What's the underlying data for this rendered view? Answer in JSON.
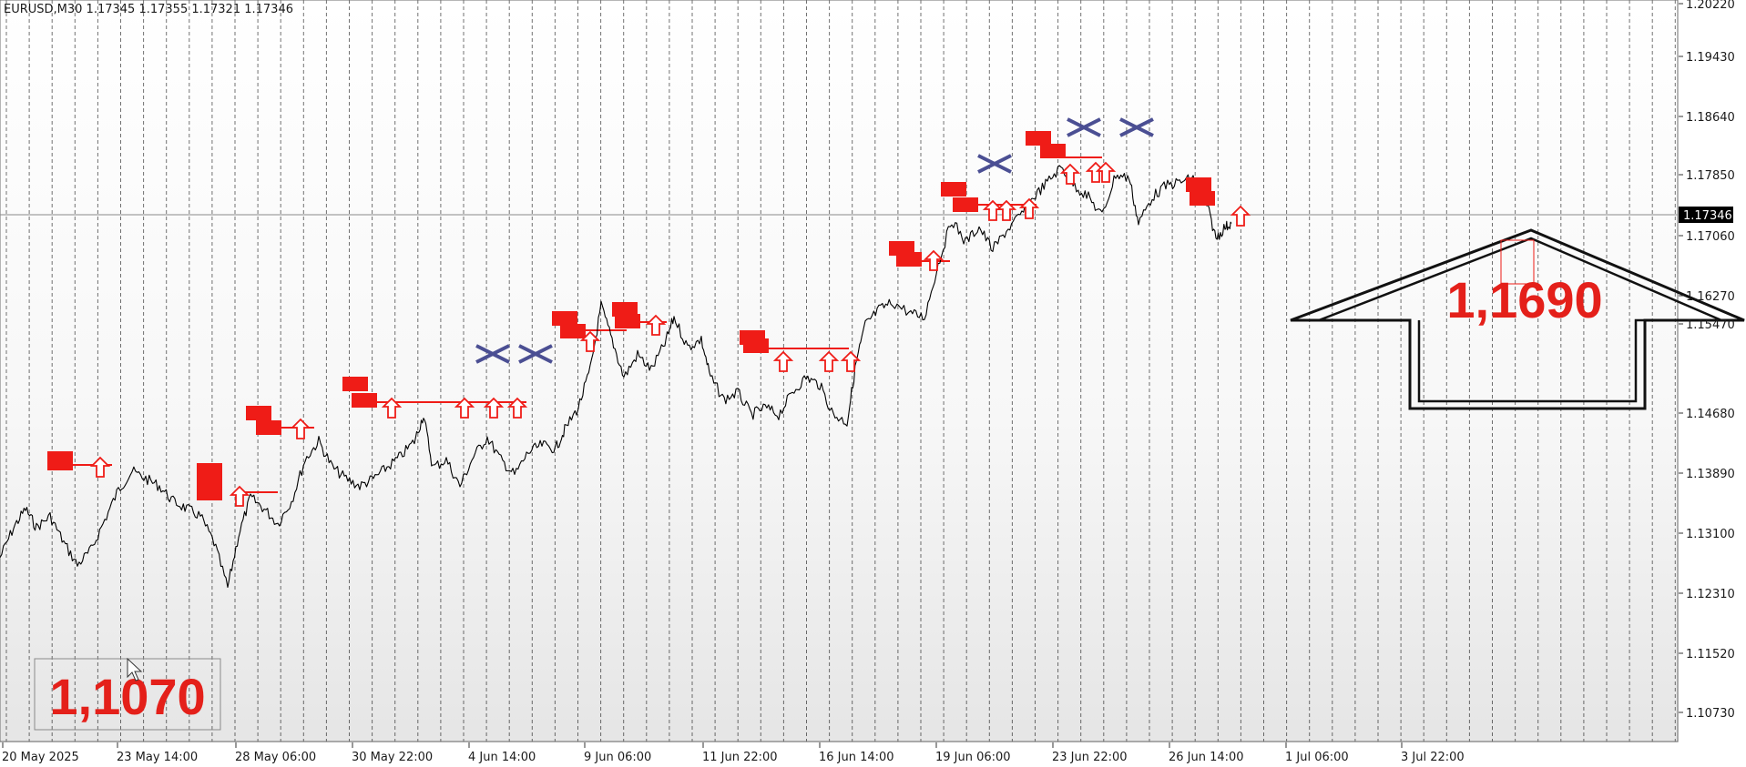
{
  "chart_data": {
    "type": "line",
    "header": "EURUSD,M30  1.17345 1.17355 1.17321 1.17346",
    "symbol": "EURUSD",
    "timeframe": "M30",
    "ohlc": {
      "open": "1.17345",
      "high": "1.17355",
      "low": "1.17321",
      "close": "1.17346"
    },
    "price_labels": [
      "1.20220",
      "1.19430",
      "1.18640",
      "1.17850",
      "1.17060",
      "1.16270",
      "1.15470",
      "1.14680",
      "1.13890",
      "1.13100",
      "1.12310",
      "1.11520",
      "1.10730"
    ],
    "current_price": "1.17346",
    "time_labels": [
      "20 May 2025",
      "23 May 14:00",
      "28 May 06:00",
      "30 May 22:00",
      "4 Jun 14:00",
      "9 Jun 06:00",
      "11 Jun 22:00",
      "16 Jun 14:00",
      "19 Jun 06:00",
      "23 Jun 22:00",
      "26 Jun 14:00",
      "1 Jul 06:00",
      "3 Jul 22:00"
    ],
    "ylim": [
      1.1045,
      1.203
    ],
    "grid": "vertical dashed",
    "series": [
      {
        "values": [
          [
            0,
            1.129
          ],
          [
            15,
            1.133
          ],
          [
            28,
            1.1355
          ],
          [
            40,
            1.133
          ],
          [
            55,
            1.1345
          ],
          [
            70,
            1.131
          ],
          [
            85,
            1.128
          ],
          [
            100,
            1.13
          ],
          [
            115,
            1.134
          ],
          [
            130,
            1.138
          ],
          [
            145,
            1.1405
          ],
          [
            160,
            1.1395
          ],
          [
            175,
            1.1385
          ],
          [
            190,
            1.1365
          ],
          [
            205,
            1.1355
          ],
          [
            220,
            1.1345
          ],
          [
            235,
            1.131
          ],
          [
            250,
            1.125
          ],
          [
            262,
            1.132
          ],
          [
            275,
            1.137
          ],
          [
            290,
            1.1355
          ],
          [
            305,
            1.1335
          ],
          [
            320,
            1.1365
          ],
          [
            335,
            1.142
          ],
          [
            350,
            1.1445
          ],
          [
            365,
            1.141
          ],
          [
            380,
            1.1395
          ],
          [
            395,
            1.1385
          ],
          [
            410,
            1.1395
          ],
          [
            425,
            1.141
          ],
          [
            440,
            1.1425
          ],
          [
            455,
            1.1445
          ],
          [
            465,
            1.148
          ],
          [
            475,
            1.141
          ],
          [
            490,
            1.142
          ],
          [
            505,
            1.1385
          ],
          [
            520,
            1.1425
          ],
          [
            535,
            1.145
          ],
          [
            550,
            1.142
          ],
          [
            565,
            1.14
          ],
          [
            580,
            1.143
          ],
          [
            595,
            1.144
          ],
          [
            610,
            1.1435
          ],
          [
            620,
            1.146
          ],
          [
            635,
            1.149
          ],
          [
            648,
            1.154
          ],
          [
            660,
            1.1625
          ],
          [
            672,
            1.158
          ],
          [
            685,
            1.153
          ],
          [
            700,
            1.156
          ],
          [
            715,
            1.154
          ],
          [
            730,
            1.1575
          ],
          [
            740,
            1.161
          ],
          [
            755,
            1.157
          ],
          [
            770,
            1.158
          ],
          [
            780,
            1.153
          ],
          [
            795,
            1.15
          ],
          [
            810,
            1.151
          ],
          [
            825,
            1.148
          ],
          [
            840,
            1.149
          ],
          [
            855,
            1.148
          ],
          [
            870,
            1.151
          ],
          [
            885,
            1.153
          ],
          [
            900,
            1.152
          ],
          [
            915,
            1.148
          ],
          [
            930,
            1.147
          ],
          [
            940,
            1.155
          ],
          [
            950,
            1.16
          ],
          [
            965,
            1.162
          ],
          [
            980,
            1.163
          ],
          [
            1000,
            1.1615
          ],
          [
            1015,
            1.161
          ],
          [
            1030,
            1.168
          ],
          [
            1045,
            1.174
          ],
          [
            1060,
            1.171
          ],
          [
            1075,
            1.173
          ],
          [
            1090,
            1.17
          ],
          [
            1105,
            1.1725
          ],
          [
            1120,
            1.1745
          ],
          [
            1135,
            1.177
          ],
          [
            1150,
            1.179
          ],
          [
            1165,
            1.181
          ],
          [
            1180,
            1.1785
          ],
          [
            1195,
            1.177
          ],
          [
            1210,
            1.1745
          ],
          [
            1225,
            1.18
          ],
          [
            1240,
            1.1795
          ],
          [
            1250,
            1.1735
          ],
          [
            1265,
            1.177
          ],
          [
            1280,
            1.1785
          ],
          [
            1295,
            1.179
          ],
          [
            1310,
            1.1795
          ],
          [
            1325,
            1.176
          ],
          [
            1335,
            1.1715
          ],
          [
            1345,
            1.173
          ],
          [
            1352,
            1.1735
          ]
        ]
      }
    ],
    "signals": {
      "red_boxes": [
        [
          66,
          509
        ],
        [
          66,
          504
        ],
        [
          230,
          517
        ],
        [
          230,
          529
        ],
        [
          230,
          542
        ],
        [
          284,
          454
        ],
        [
          295,
          470
        ],
        [
          390,
          422
        ],
        [
          400,
          440
        ],
        [
          620,
          350
        ],
        [
          629,
          364
        ],
        [
          686,
          340
        ],
        [
          689,
          353
        ],
        [
          826,
          371
        ],
        [
          830,
          380
        ],
        [
          1047,
          208
        ],
        [
          1060,
          225
        ],
        [
          990,
          273
        ],
        [
          998,
          285
        ],
        [
          1140,
          152
        ],
        [
          1156,
          166
        ],
        [
          1316,
          203
        ],
        [
          1320,
          218
        ]
      ],
      "up_arrows": [
        [
          110,
          514
        ],
        [
          263,
          546
        ],
        [
          330,
          472
        ],
        [
          430,
          449
        ],
        [
          510,
          449
        ],
        [
          542,
          449
        ],
        [
          568,
          449
        ],
        [
          648,
          376
        ],
        [
          720,
          358
        ],
        [
          860,
          398
        ],
        [
          910,
          398
        ],
        [
          934,
          398
        ],
        [
          1025,
          287
        ],
        [
          1090,
          232
        ],
        [
          1105,
          232
        ],
        [
          1130,
          230
        ],
        [
          1175,
          192
        ],
        [
          1203,
          190
        ],
        [
          1214,
          190
        ],
        [
          1362,
          238
        ]
      ],
      "x_marks": [
        [
          541,
          389
        ],
        [
          588,
          389
        ],
        [
          1092,
          180
        ],
        [
          1190,
          140
        ],
        [
          1248,
          140
        ]
      ],
      "support_lines": [
        [
          80,
          511,
          123,
          511
        ],
        [
          262,
          541,
          305,
          541
        ],
        [
          300,
          470,
          345,
          470
        ],
        [
          395,
          442,
          578,
          442
        ],
        [
          630,
          363,
          688,
          363
        ],
        [
          690,
          354,
          732,
          354
        ],
        [
          828,
          383,
          932,
          383
        ],
        [
          995,
          287,
          1043,
          287
        ],
        [
          1050,
          225,
          1138,
          225
        ],
        [
          1142,
          173,
          1210,
          173
        ]
      ]
    },
    "annotations": {
      "target_top": "1,1690",
      "target_bottom": "1,1070"
    },
    "colors": {
      "background": "#ffffff",
      "price_line": "#000000",
      "grid": "#000000",
      "signal": "#ef1c17",
      "x_mark": "#4b4f93",
      "price_tag_bg": "#000000",
      "annotation_text": "#e4201a"
    }
  }
}
